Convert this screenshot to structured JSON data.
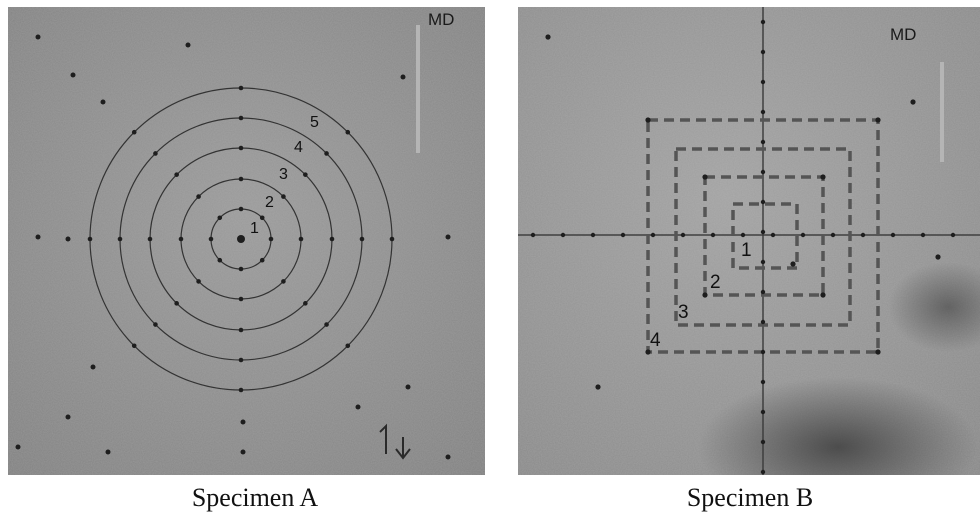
{
  "specimen_a": {
    "caption": "Specimen A",
    "direction_label": "MD",
    "ring_labels": [
      "1",
      "2",
      "3",
      "4",
      "5"
    ]
  },
  "specimen_b": {
    "caption": "Specimen B",
    "direction_label": "MD",
    "square_labels": [
      "1",
      "2",
      "3",
      "4"
    ]
  },
  "colors": {
    "specimen_background": "#8f8f8f",
    "ring_stroke": "#333333",
    "square_stroke": "#555555",
    "md_bar": "#b5b5b5",
    "dots": "#1e1e1e"
  }
}
